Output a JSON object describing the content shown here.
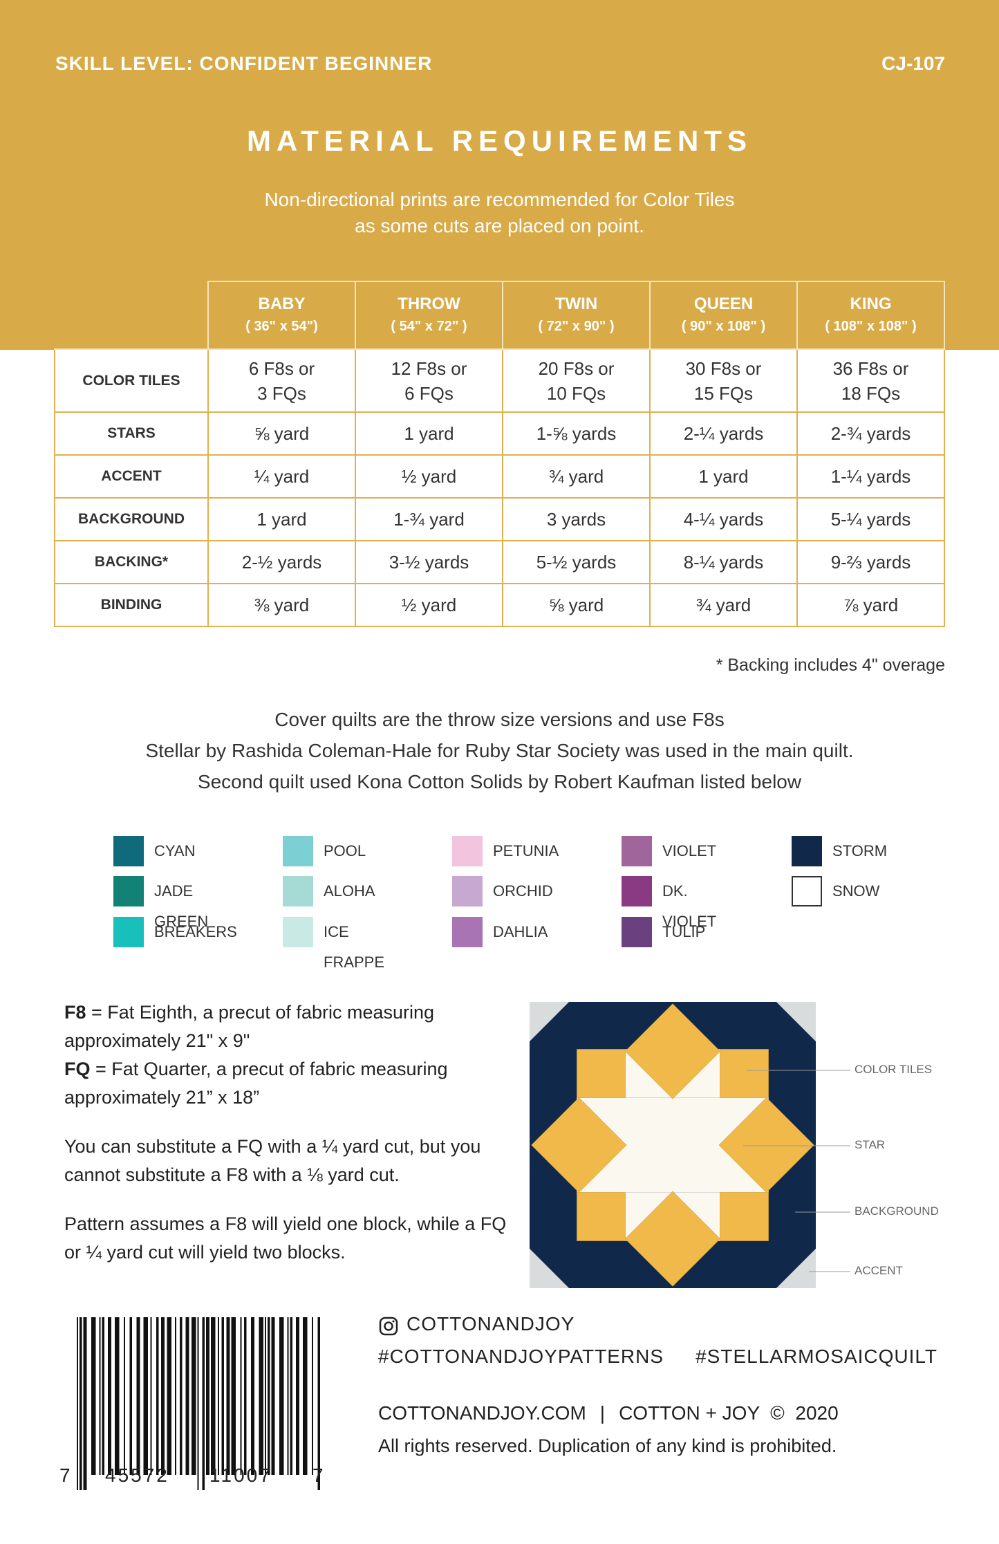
{
  "header": {
    "skill_level": "SKILL LEVEL: CONFIDENT BEGINNER",
    "code": "CJ-107",
    "title": "MATERIAL REQUIREMENTS",
    "intro": [
      "Non-directional prints are recommended for Color Tiles",
      "as some cuts are placed on point."
    ]
  },
  "table": {
    "columns": [
      {
        "name": "BABY",
        "size": "( 36\" x 54\")"
      },
      {
        "name": "THROW",
        "size": "( 54\" x 72\" )"
      },
      {
        "name": "TWIN",
        "size": "( 72\" x 90\" )"
      },
      {
        "name": "QUEEN",
        "size": "( 90\" x 108\" )"
      },
      {
        "name": "KING",
        "size": "( 108\" x 108\" )"
      }
    ],
    "rows": [
      {
        "label": "COLOR TILES",
        "cells": [
          "6 F8s or\n3 FQs",
          "12 F8s or\n6 FQs",
          "20 F8s or\n10 FQs",
          "30 F8s or\n15 FQs",
          "36 F8s or\n18 FQs"
        ]
      },
      {
        "label": "STARS",
        "cells": [
          "⅝ yard",
          "1 yard",
          "1-⅝ yards",
          "2-¼ yards",
          "2-¾ yards"
        ]
      },
      {
        "label": "ACCENT",
        "cells": [
          "¼ yard",
          "½ yard",
          "¾ yard",
          "1 yard",
          "1-¼ yards"
        ]
      },
      {
        "label": "BACKGROUND",
        "cells": [
          "1 yard",
          "1-¾ yard",
          "3 yards",
          "4-¼ yards",
          "5-¼ yards"
        ]
      },
      {
        "label": "BACKING*",
        "cells": [
          "2-½ yards",
          "3-½ yards",
          "5-½ yards",
          "8-¼ yards",
          "9-⅔ yards"
        ]
      },
      {
        "label": "BINDING",
        "cells": [
          "⅜ yard",
          "½ yard",
          "⅝ yard",
          "¾ yard",
          "⅞ yard"
        ]
      }
    ],
    "footnote": "* Backing includes 4\" overage"
  },
  "notes": [
    "Cover quilts are the throw size versions and use F8s",
    "Stellar by Rashida Coleman-Hale for Ruby Star Society was used in the main quilt.",
    "Second quilt used Kona Cotton Solids by Robert Kaufman listed below"
  ],
  "colors": [
    {
      "name": "CYAN",
      "color": "#0f6a7c"
    },
    {
      "name": "JADE GREEN",
      "color": "#128276"
    },
    {
      "name": "BREAKERS",
      "color": "#19bfbb"
    },
    {
      "name": "POOL",
      "color": "#7ccfd2"
    },
    {
      "name": "ALOHA",
      "color": "#a6dbd5"
    },
    {
      "name": "ICE FRAPPE",
      "color": "#c9e9e4"
    },
    {
      "name": "PETUNIA",
      "color": "#f2c4dd"
    },
    {
      "name": "ORCHID",
      "color": "#c7a8d1"
    },
    {
      "name": "DAHLIA",
      "color": "#a874b4"
    },
    {
      "name": "VIOLET",
      "color": "#a0659b"
    },
    {
      "name": "DK. VIOLET",
      "color": "#8a3a82"
    },
    {
      "name": "TULIP",
      "color": "#6a407f"
    },
    {
      "name": "STORM",
      "color": "#10294a"
    },
    {
      "name": "SNOW",
      "color": "#ffffff"
    }
  ],
  "definitions": [
    {
      "term": "F8",
      "text": " = Fat Eighth, a precut of fabric measuring approximately 21\" x 9\""
    },
    {
      "term": "FQ",
      "text": " = Fat Quarter, a precut of fabric measuring approximately 21” x 18”"
    }
  ],
  "paragraphs": [
    "You can substitute a FQ with a ¼ yard cut, but you cannot substitute a F8 with a ⅛ yard cut.",
    "Pattern assumes a F8 will yield one block, while a FQ or ¼ yard cut will yield two blocks."
  ],
  "diagram": {
    "labels": [
      "COLOR TILES",
      "STAR",
      "BACKGROUND",
      "ACCENT"
    ]
  },
  "barcode": [
    "7",
    "45572",
    "11007",
    "7"
  ],
  "footer": {
    "instagram": "COTTONANDJOY",
    "hashtag_left": "#COTTONANDJOYPATTERNS",
    "hashtag_right": "#STELLARMOSAICQUILT",
    "website": "COTTONANDJOY.COM",
    "separator": "|",
    "brand": "COTTON + JOY  ©  2020",
    "rights": "All rights reserved. Duplication of any kind is prohibited."
  }
}
